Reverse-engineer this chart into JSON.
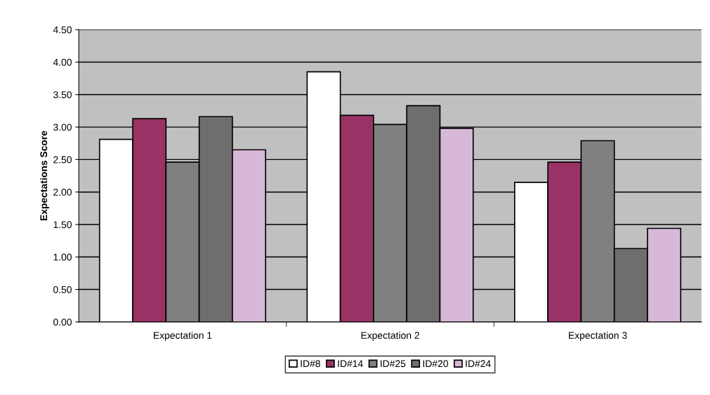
{
  "chart_data": {
    "type": "bar",
    "ylabel": "Expectations Score",
    "categories": [
      "Expectation 1",
      "Expectation 2",
      "Expectation 3"
    ],
    "series": [
      {
        "name": "ID#8",
        "color": "#ffffff",
        "values": [
          2.81,
          3.85,
          2.15
        ]
      },
      {
        "name": "ID#14",
        "color": "#993366",
        "values": [
          3.13,
          3.18,
          2.46
        ]
      },
      {
        "name": "ID#25",
        "color": "#808080",
        "values": [
          2.46,
          3.04,
          2.79
        ]
      },
      {
        "name": "ID#20",
        "color": "#6e6e6e",
        "values": [
          3.16,
          3.33,
          1.13
        ]
      },
      {
        "name": "ID#24",
        "color": "#d8b8d8",
        "values": [
          2.65,
          2.98,
          1.44
        ]
      }
    ],
    "ylim": [
      0,
      4.5
    ],
    "yticks": [
      {
        "value": 0,
        "label": "0.00"
      },
      {
        "value": 0.5,
        "label": "0.50"
      },
      {
        "value": 1,
        "label": "1.00"
      },
      {
        "value": 1.5,
        "label": "1.50"
      },
      {
        "value": 2,
        "label": "2.00"
      },
      {
        "value": 2.5,
        "label": "2.50"
      },
      {
        "value": 3,
        "label": "3.00"
      },
      {
        "value": 3.5,
        "label": "3.50"
      },
      {
        "value": 4,
        "label": "4.00"
      },
      {
        "value": 4.5,
        "label": "4.50"
      }
    ],
    "grid": "y",
    "legend": "bottom"
  }
}
